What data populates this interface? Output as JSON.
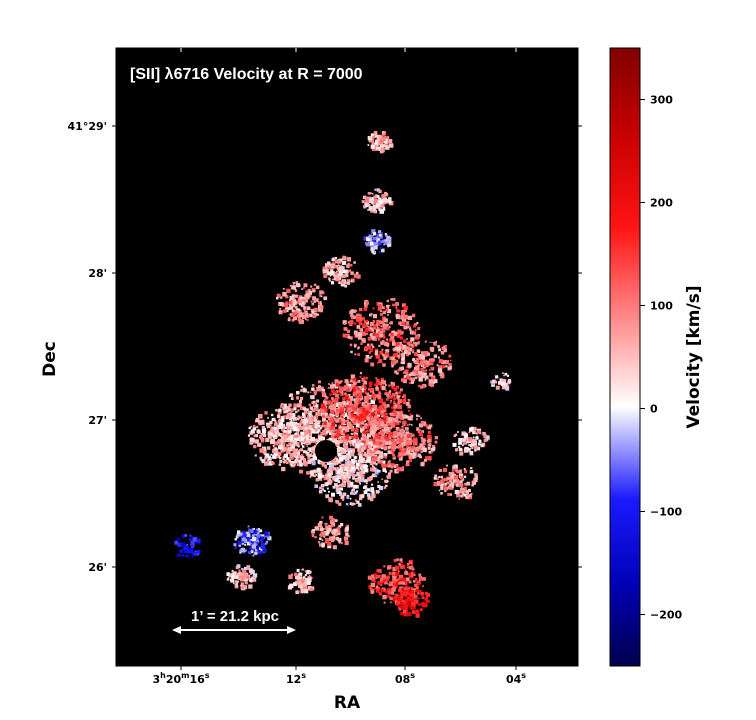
{
  "chart_data": {
    "type": "heatmap",
    "title": "[SII] λ6716 Velocity at R = 7000",
    "xlabel": "RA",
    "ylabel": "Dec",
    "x_tick_labels": [
      "3h20m16s",
      "12s",
      "08s",
      "04s"
    ],
    "x_tick_parts": [
      {
        "h": "3",
        "m": "20",
        "s": "16"
      },
      {
        "s": "12"
      },
      {
        "s": "08"
      },
      {
        "s": "04"
      }
    ],
    "y_tick_labels": [
      "41°29'",
      "28'",
      "27'",
      "26'"
    ],
    "colorbar": {
      "label": "Velocity [km/s]",
      "colormap": "seismic",
      "range": [
        -250,
        350
      ],
      "ticks": [
        300,
        200,
        100,
        0,
        -100,
        -200
      ],
      "tick_labels": [
        "300",
        "200",
        "100",
        "0",
        "−100",
        "−200"
      ]
    },
    "scale_bar": {
      "label": "1’ = 21.2 kpc"
    },
    "background_color": "#000000",
    "colors": {
      "negative": "#00008b",
      "zero": "#ffffff",
      "positive": "#8b0000"
    }
  }
}
